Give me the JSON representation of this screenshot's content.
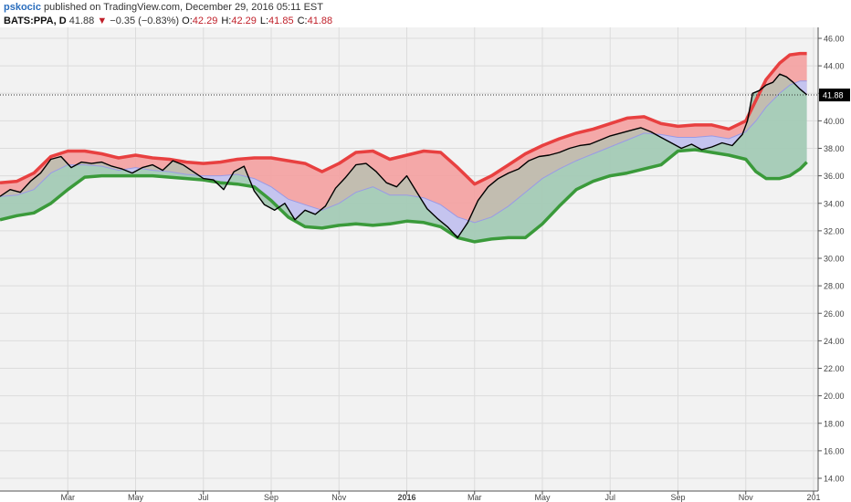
{
  "header": {
    "author": "pskocic",
    "published_text": "published on TradingView.com, December 29, 2016 05:11 EST",
    "symbol": "BATS:PPA, D",
    "last": "41.88",
    "down_arrow": "▼",
    "change": "−0.35 (−0.83%)",
    "open_label": "O:",
    "open": "42.29",
    "high_label": "H:",
    "high": "42.29",
    "low_label": "L:",
    "low": "41.85",
    "close_label": "C:",
    "close": "41.88"
  },
  "chart_data": {
    "type": "line",
    "ylim": [
      14.0,
      46.0
    ],
    "yticks": [
      "46.00",
      "44.00",
      "42.00",
      "40.00",
      "38.00",
      "36.00",
      "34.00",
      "32.00",
      "30.00",
      "28.00",
      "26.00",
      "24.00",
      "22.00",
      "20.00",
      "18.00",
      "16.00",
      "14.00"
    ],
    "xlim": [
      0,
      24
    ],
    "xticks": [
      {
        "label": "Mar",
        "x": 2.0
      },
      {
        "label": "May",
        "x": 4.0
      },
      {
        "label": "Jul",
        "x": 6.0
      },
      {
        "label": "Sep",
        "x": 8.0
      },
      {
        "label": "Nov",
        "x": 10.0
      },
      {
        "label": "2016",
        "x": 12.0
      },
      {
        "label": "Mar",
        "x": 14.0
      },
      {
        "label": "May",
        "x": 16.0
      },
      {
        "label": "Jul",
        "x": 18.0
      },
      {
        "label": "Sep",
        "x": 20.0
      },
      {
        "label": "Nov",
        "x": 22.0
      },
      {
        "label": "201",
        "x": 24.0
      }
    ],
    "last_price_label": "41.88",
    "last_price": 41.88,
    "colors": {
      "upper": "#e84040",
      "upper_fill": "#f4a0a0",
      "mid_fill": "#c4c4f0",
      "mid": "#9a9ae6",
      "lower": "#3a9a3a",
      "lower_fill": "#8ccf8c",
      "price": "#000000"
    },
    "series": [
      {
        "key": "upper",
        "x": [
          0.0,
          0.5,
          1.0,
          1.5,
          2.0,
          2.5,
          3.0,
          3.5,
          4.0,
          4.5,
          5.0,
          5.5,
          6.0,
          6.5,
          7.0,
          7.5,
          8.0,
          8.5,
          9.0,
          9.5,
          10.0,
          10.5,
          11.0,
          11.5,
          12.0,
          12.5,
          13.0,
          13.5,
          14.0,
          14.5,
          15.0,
          15.5,
          16.0,
          16.5,
          17.0,
          17.5,
          18.0,
          18.5,
          19.0,
          19.5,
          20.0,
          20.5,
          21.0,
          21.5,
          22.0,
          22.3,
          22.6,
          23.0,
          23.3,
          23.6,
          23.8
        ],
        "values": [
          35.5,
          35.6,
          36.2,
          37.4,
          37.8,
          37.8,
          37.6,
          37.3,
          37.5,
          37.3,
          37.2,
          37.0,
          36.9,
          37.0,
          37.2,
          37.3,
          37.3,
          37.1,
          36.9,
          36.3,
          36.9,
          37.7,
          37.8,
          37.2,
          37.5,
          37.8,
          37.7,
          36.6,
          35.4,
          36.0,
          36.8,
          37.6,
          38.2,
          38.7,
          39.1,
          39.4,
          39.8,
          40.2,
          40.3,
          39.8,
          39.6,
          39.7,
          39.7,
          39.4,
          40.0,
          41.5,
          43.0,
          44.2,
          44.8,
          44.9,
          44.9
        ]
      },
      {
        "key": "mid",
        "x": [
          0.0,
          0.5,
          1.0,
          1.5,
          2.0,
          2.5,
          3.0,
          3.5,
          4.0,
          4.5,
          5.0,
          5.5,
          6.0,
          6.5,
          7.0,
          7.5,
          8.0,
          8.5,
          9.0,
          9.5,
          10.0,
          10.5,
          11.0,
          11.5,
          12.0,
          12.5,
          13.0,
          13.5,
          14.0,
          14.5,
          15.0,
          15.5,
          16.0,
          16.5,
          17.0,
          17.5,
          18.0,
          18.5,
          19.0,
          19.5,
          20.0,
          20.5,
          21.0,
          21.5,
          22.0,
          22.3,
          22.6,
          23.0,
          23.3,
          23.6,
          23.8
        ],
        "values": [
          34.5,
          34.6,
          35.0,
          36.2,
          36.8,
          36.8,
          36.7,
          36.4,
          36.6,
          36.4,
          36.3,
          36.1,
          36.0,
          36.0,
          36.1,
          35.8,
          35.2,
          34.3,
          33.9,
          33.5,
          34.0,
          34.8,
          35.2,
          34.6,
          34.6,
          34.4,
          33.9,
          33.0,
          32.6,
          33.0,
          33.8,
          34.8,
          35.8,
          36.5,
          37.1,
          37.6,
          38.1,
          38.6,
          39.1,
          39.0,
          38.8,
          38.8,
          38.9,
          38.7,
          39.2,
          40.0,
          41.0,
          42.0,
          42.6,
          42.9,
          42.9
        ]
      },
      {
        "key": "lower",
        "x": [
          0.0,
          0.5,
          1.0,
          1.5,
          2.0,
          2.5,
          3.0,
          3.5,
          4.0,
          4.5,
          5.0,
          5.5,
          6.0,
          6.5,
          7.0,
          7.5,
          8.0,
          8.5,
          9.0,
          9.5,
          10.0,
          10.5,
          11.0,
          11.5,
          12.0,
          12.5,
          13.0,
          13.5,
          14.0,
          14.5,
          15.0,
          15.5,
          16.0,
          16.5,
          17.0,
          17.5,
          18.0,
          18.5,
          19.0,
          19.5,
          20.0,
          20.5,
          21.0,
          21.5,
          22.0,
          22.3,
          22.6,
          23.0,
          23.3,
          23.6,
          23.8
        ],
        "values": [
          32.8,
          33.1,
          33.3,
          34.0,
          35.0,
          35.9,
          36.0,
          36.0,
          36.0,
          36.0,
          35.9,
          35.8,
          35.7,
          35.5,
          35.4,
          35.2,
          34.2,
          33.0,
          32.3,
          32.2,
          32.4,
          32.5,
          32.4,
          32.5,
          32.7,
          32.6,
          32.3,
          31.5,
          31.2,
          31.4,
          31.5,
          31.5,
          32.5,
          33.8,
          35.0,
          35.6,
          36.0,
          36.2,
          36.5,
          36.8,
          37.8,
          37.9,
          37.7,
          37.5,
          37.2,
          36.3,
          35.8,
          35.8,
          36.0,
          36.5,
          37.0
        ]
      },
      {
        "key": "price",
        "x": [
          0.0,
          0.3,
          0.6,
          0.9,
          1.2,
          1.5,
          1.8,
          2.1,
          2.4,
          2.7,
          3.0,
          3.3,
          3.6,
          3.9,
          4.2,
          4.5,
          4.8,
          5.1,
          5.4,
          5.7,
          6.0,
          6.3,
          6.6,
          6.9,
          7.2,
          7.5,
          7.8,
          8.1,
          8.4,
          8.7,
          9.0,
          9.3,
          9.6,
          9.9,
          10.2,
          10.5,
          10.8,
          11.1,
          11.4,
          11.7,
          12.0,
          12.3,
          12.6,
          12.9,
          13.2,
          13.5,
          13.8,
          14.1,
          14.4,
          14.7,
          15.0,
          15.3,
          15.6,
          15.9,
          16.2,
          16.5,
          16.8,
          17.1,
          17.4,
          17.7,
          18.0,
          18.3,
          18.6,
          18.9,
          19.2,
          19.5,
          19.8,
          20.1,
          20.4,
          20.7,
          21.0,
          21.3,
          21.6,
          21.9,
          22.05,
          22.2,
          22.4,
          22.6,
          22.8,
          23.0,
          23.2,
          23.4,
          23.6,
          23.8
        ],
        "values": [
          34.5,
          35.0,
          34.8,
          35.6,
          36.2,
          37.2,
          37.4,
          36.6,
          37.0,
          36.9,
          37.0,
          36.7,
          36.5,
          36.2,
          36.6,
          36.8,
          36.4,
          37.1,
          36.8,
          36.3,
          35.8,
          35.7,
          35.0,
          36.3,
          36.7,
          34.9,
          33.9,
          33.5,
          34.0,
          32.8,
          33.5,
          33.2,
          33.8,
          35.1,
          35.9,
          36.8,
          36.9,
          36.3,
          35.5,
          35.2,
          36.0,
          34.8,
          33.6,
          32.9,
          32.3,
          31.5,
          32.6,
          34.2,
          35.2,
          35.8,
          36.2,
          36.5,
          37.1,
          37.4,
          37.5,
          37.7,
          38.0,
          38.2,
          38.3,
          38.6,
          38.9,
          39.1,
          39.3,
          39.5,
          39.2,
          38.8,
          38.4,
          38.0,
          38.3,
          37.9,
          38.1,
          38.4,
          38.2,
          39.0,
          40.0,
          42.0,
          42.2,
          42.6,
          42.8,
          43.4,
          43.2,
          42.8,
          42.3,
          41.9
        ]
      }
    ]
  }
}
